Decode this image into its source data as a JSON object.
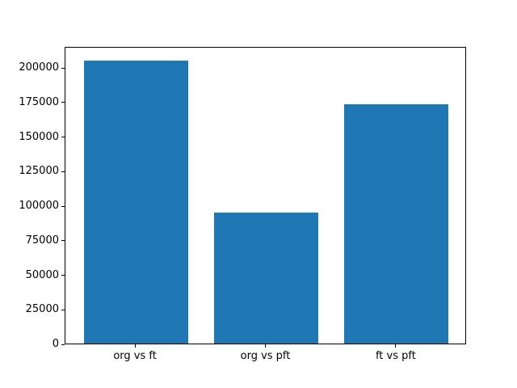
{
  "chart_data": {
    "type": "bar",
    "title": "",
    "xlabel": "",
    "ylabel": "",
    "categories": [
      "org vs ft",
      "org vs pft",
      "ft vs pft"
    ],
    "values": [
      205000,
      95000,
      173000
    ],
    "yticks": [
      0,
      25000,
      50000,
      75000,
      100000,
      125000,
      150000,
      175000,
      200000
    ],
    "ytick_labels": [
      "0",
      "25000",
      "50000",
      "75000",
      "100000",
      "125000",
      "150000",
      "175000",
      "200000"
    ],
    "ylim": [
      0,
      215250
    ],
    "xlim": [
      -0.54,
      2.54
    ],
    "bar_width": 0.8,
    "bar_color": "#1f77b4",
    "spine_color": "#000000",
    "background_color": "#ffffff",
    "grid": false,
    "legend": "none"
  }
}
